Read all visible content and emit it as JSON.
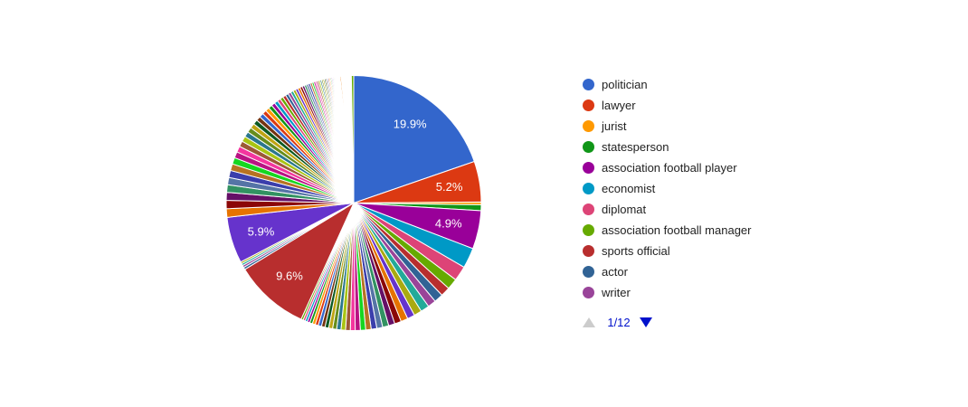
{
  "figure": {
    "background_color": "#ffffff"
  },
  "legend": {
    "position": "right",
    "items": [
      {
        "label": "politician",
        "color": "#3366CC"
      },
      {
        "label": "lawyer",
        "color": "#DC3912"
      },
      {
        "label": "jurist",
        "color": "#FF9900"
      },
      {
        "label": "statesperson",
        "color": "#109618"
      },
      {
        "label": "association football player",
        "color": "#990099"
      },
      {
        "label": "economist",
        "color": "#0099C6"
      },
      {
        "label": "diplomat",
        "color": "#DD4477"
      },
      {
        "label": "association football manager",
        "color": "#66AA00"
      },
      {
        "label": "sports official",
        "color": "#B82E2E"
      },
      {
        "label": "actor",
        "color": "#316395"
      },
      {
        "label": "writer",
        "color": "#994499"
      }
    ],
    "pagination": {
      "current_page": "1/12",
      "text_color": "#0011CC",
      "active_arrow_color": "#0011CC",
      "inactive_arrow_color": "#CCCCCC"
    }
  },
  "chart_data": {
    "type": "pie",
    "title": "",
    "legend_position": "right",
    "units": "percent",
    "visible_percent_labels": [
      "19.9%",
      "5.2%",
      "4.9%",
      "9.6%",
      "5.9%"
    ],
    "slice_labels": {
      "0": "19.9%",
      "1": "5.2%",
      "4": "4.9%",
      "39": "9.6%",
      "44": "5.9%"
    },
    "named_slices": [
      {
        "label": "politician",
        "value": 19.9
      },
      {
        "label": "lawyer",
        "value": 5.2
      },
      {
        "label": "jurist",
        "value": 0.35
      },
      {
        "label": "statesperson",
        "value": 0.75
      },
      {
        "label": "association football player",
        "value": 4.9
      },
      {
        "label": "economist",
        "value": 2.6
      },
      {
        "label": "diplomat",
        "value": 1.9
      },
      {
        "label": "association football manager",
        "value": 1.4
      },
      {
        "label": "sports official",
        "value": 1.2
      },
      {
        "label": "actor",
        "value": 1.15
      },
      {
        "label": "writer",
        "value": 1.05
      }
    ],
    "palette": [
      "#3366CC",
      "#DC3912",
      "#FF9900",
      "#109618",
      "#990099",
      "#0099C6",
      "#DD4477",
      "#66AA00",
      "#B82E2E",
      "#316395",
      "#994499",
      "#22AA99",
      "#AAAA11",
      "#6633CC",
      "#E67300",
      "#8B0707",
      "#651067",
      "#329262",
      "#5574A6",
      "#3B3EAC",
      "#B77322",
      "#16D620",
      "#B91383",
      "#F4359E",
      "#9C5935",
      "#A9C413",
      "#2A778D",
      "#668D1C",
      "#BEA413",
      "#0C5922",
      "#743411"
    ],
    "values": [
      19.9,
      5.2,
      0.35,
      0.75,
      4.9,
      2.6,
      1.9,
      1.4,
      1.2,
      1.15,
      1.05,
      1.1,
      1.0,
      0.95,
      0.9,
      0.85,
      0.8,
      0.78,
      0.75,
      0.72,
      0.7,
      0.68,
      0.65,
      0.62,
      0.6,
      0.58,
      0.55,
      0.52,
      0.5,
      0.48,
      0.45,
      0.42,
      0.4,
      0.38,
      0.35,
      0.32,
      0.3,
      0.28,
      0.27,
      9.6,
      0.3,
      0.28,
      0.26,
      0.24,
      5.9,
      1.1,
      1.06,
      1.01,
      0.97,
      0.93,
      0.9,
      0.86,
      0.83,
      0.79,
      0.76,
      0.73,
      0.7,
      0.67,
      0.65,
      0.62,
      0.6,
      0.57,
      0.55,
      0.53,
      0.51,
      0.49,
      0.47,
      0.45,
      0.43,
      0.41,
      0.4,
      0.38,
      0.37,
      0.35,
      0.34,
      0.32,
      0.31,
      0.3,
      0.29,
      0.27,
      0.26,
      0.25,
      0.24,
      0.23,
      0.22,
      0.21,
      0.21,
      0.2,
      0.19,
      0.18,
      0.18,
      0.17,
      0.16,
      0.155,
      0.15,
      0.143,
      0.137,
      0.132,
      0.127,
      0.122,
      0.117,
      0.112,
      0.108,
      0.103,
      0.099,
      0.095,
      0.091,
      0.15,
      0.084,
      0.081,
      0.078,
      0.075,
      0.072,
      0.069,
      0.066,
      0.063,
      0.061,
      0.058,
      0.056,
      0.054,
      0.052,
      0.05,
      0.048,
      0.046,
      0.044,
      0.042,
      0.04,
      0.039,
      0.037,
      0.036,
      0.036,
      0.3
    ]
  }
}
